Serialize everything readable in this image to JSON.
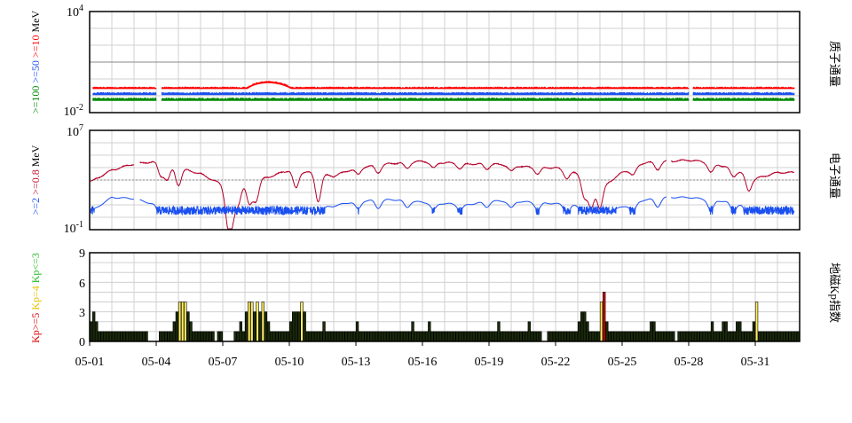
{
  "chart_data": [
    {
      "type": "line",
      "panel": "proton",
      "ylabel_right": "质子通量",
      "yscale": "log",
      "ylim": [
        0.01,
        10000
      ],
      "yticks": [
        {
          "base": "10",
          "exp": "4"
        },
        {
          "base": "10",
          "exp": "-2"
        }
      ],
      "ylabel_left": [
        {
          "text": ">=100",
          "color": "#008800"
        },
        {
          "text": ">=50",
          "color": "#1a4ff0"
        },
        {
          "text": ">=10",
          "color": "#ff0000"
        },
        {
          "text": "MeV",
          "color": "#000000"
        }
      ],
      "series": [
        {
          "color": "#ff0000",
          "level": 0.25,
          "band_hi": 0.32,
          "event_peak": 0.6
        },
        {
          "color": "#1a4ff0",
          "level": 0.11,
          "band_hi": 0.15
        },
        {
          "color": "#008800",
          "level": 0.05,
          "band_hi": 0.07
        }
      ],
      "gaps_days": [
        [
          3.0,
          3.25
        ],
        [
          27.0,
          27.2
        ]
      ],
      "grid": true
    },
    {
      "type": "line",
      "panel": "electron",
      "ylabel_right": "电子通量",
      "yscale": "log",
      "ylim": [
        0.1,
        10000000
      ],
      "yticks": [
        {
          "base": "10",
          "exp": "7"
        },
        {
          "base": "10",
          "exp": "-1"
        }
      ],
      "ylabel_left": [
        {
          "text": ">=2",
          "color": "#1a4ff0"
        },
        {
          "text": ">=0.8",
          "color": "#c0102a"
        },
        {
          "text": "MeV",
          "color": "#000000"
        }
      ],
      "threshold": 1000,
      "series": [
        {
          "color": "#b3002a",
          "typical": 20000
        },
        {
          "color": "#1a4ff0",
          "typical": 20
        }
      ],
      "grid": true
    },
    {
      "type": "bar",
      "panel": "kp",
      "ylabel_right": "地磁Kp指数",
      "ylim": [
        0,
        9
      ],
      "yticks": [
        "0",
        "3",
        "6",
        "9"
      ],
      "ylabel_left": [
        {
          "text": "Kp>=5",
          "color": "#dd0000"
        },
        {
          "text": "Kp=4",
          "color": "#e6c000"
        },
        {
          "text": "Kp<=3",
          "color": "#22bb22"
        }
      ],
      "bar_colors": {
        "quiet": "#1a2a0a",
        "kp4": "#ffee66",
        "storm": "#cc0000"
      },
      "x_start": "05-01",
      "bins_per_day": 8,
      "days": 32,
      "values": [
        2,
        3,
        2,
        1,
        1,
        1,
        1,
        1,
        1,
        1,
        1,
        1,
        1,
        1,
        1,
        1,
        1,
        1,
        1,
        1,
        1,
        0,
        0,
        0,
        0,
        1,
        1,
        1,
        1,
        1,
        2,
        3,
        4,
        4,
        4,
        3,
        2,
        1,
        1,
        1,
        1,
        1,
        1,
        1,
        1,
        0,
        1,
        1,
        0,
        0,
        0,
        0,
        1,
        1,
        2,
        1,
        3,
        4,
        4,
        3,
        4,
        3,
        4,
        3,
        2,
        1,
        1,
        1,
        1,
        1,
        1,
        1,
        2,
        3,
        3,
        3,
        4,
        3,
        1,
        1,
        1,
        1,
        1,
        1,
        2,
        1,
        1,
        1,
        1,
        1,
        1,
        1,
        1,
        1,
        1,
        1,
        2,
        1,
        1,
        1,
        1,
        1,
        1,
        1,
        1,
        1,
        1,
        1,
        1,
        1,
        1,
        1,
        1,
        1,
        1,
        1,
        2,
        1,
        1,
        1,
        1,
        1,
        2,
        1,
        1,
        1,
        1,
        1,
        1,
        1,
        1,
        1,
        1,
        1,
        1,
        1,
        1,
        1,
        1,
        1,
        1,
        1,
        1,
        1,
        1,
        1,
        1,
        2,
        1,
        1,
        1,
        1,
        1,
        1,
        1,
        1,
        1,
        1,
        2,
        1,
        1,
        1,
        1,
        0,
        0,
        1,
        1,
        1,
        1,
        1,
        1,
        1,
        1,
        1,
        1,
        1,
        2,
        3,
        3,
        2,
        1,
        1,
        1,
        1,
        4,
        5,
        2,
        1,
        1,
        1,
        1,
        1,
        1,
        1,
        1,
        1,
        1,
        1,
        1,
        1,
        1,
        1,
        2,
        2,
        1,
        1,
        1,
        1,
        1,
        1,
        1,
        0,
        1,
        1,
        1,
        1,
        1,
        1,
        1,
        1,
        1,
        1,
        1,
        1,
        2,
        1,
        1,
        1,
        2,
        2,
        1,
        1,
        1,
        2,
        2,
        1,
        1,
        1,
        1,
        2,
        4,
        1,
        1,
        1,
        1,
        1,
        1,
        1,
        1,
        1,
        1,
        1,
        1,
        1,
        1,
        1
      ],
      "xticks": [
        "05-01",
        "05-04",
        "05-07",
        "05-10",
        "05-13",
        "05-16",
        "05-19",
        "05-22",
        "05-25",
        "05-28",
        "05-31"
      ],
      "grid": true
    }
  ]
}
